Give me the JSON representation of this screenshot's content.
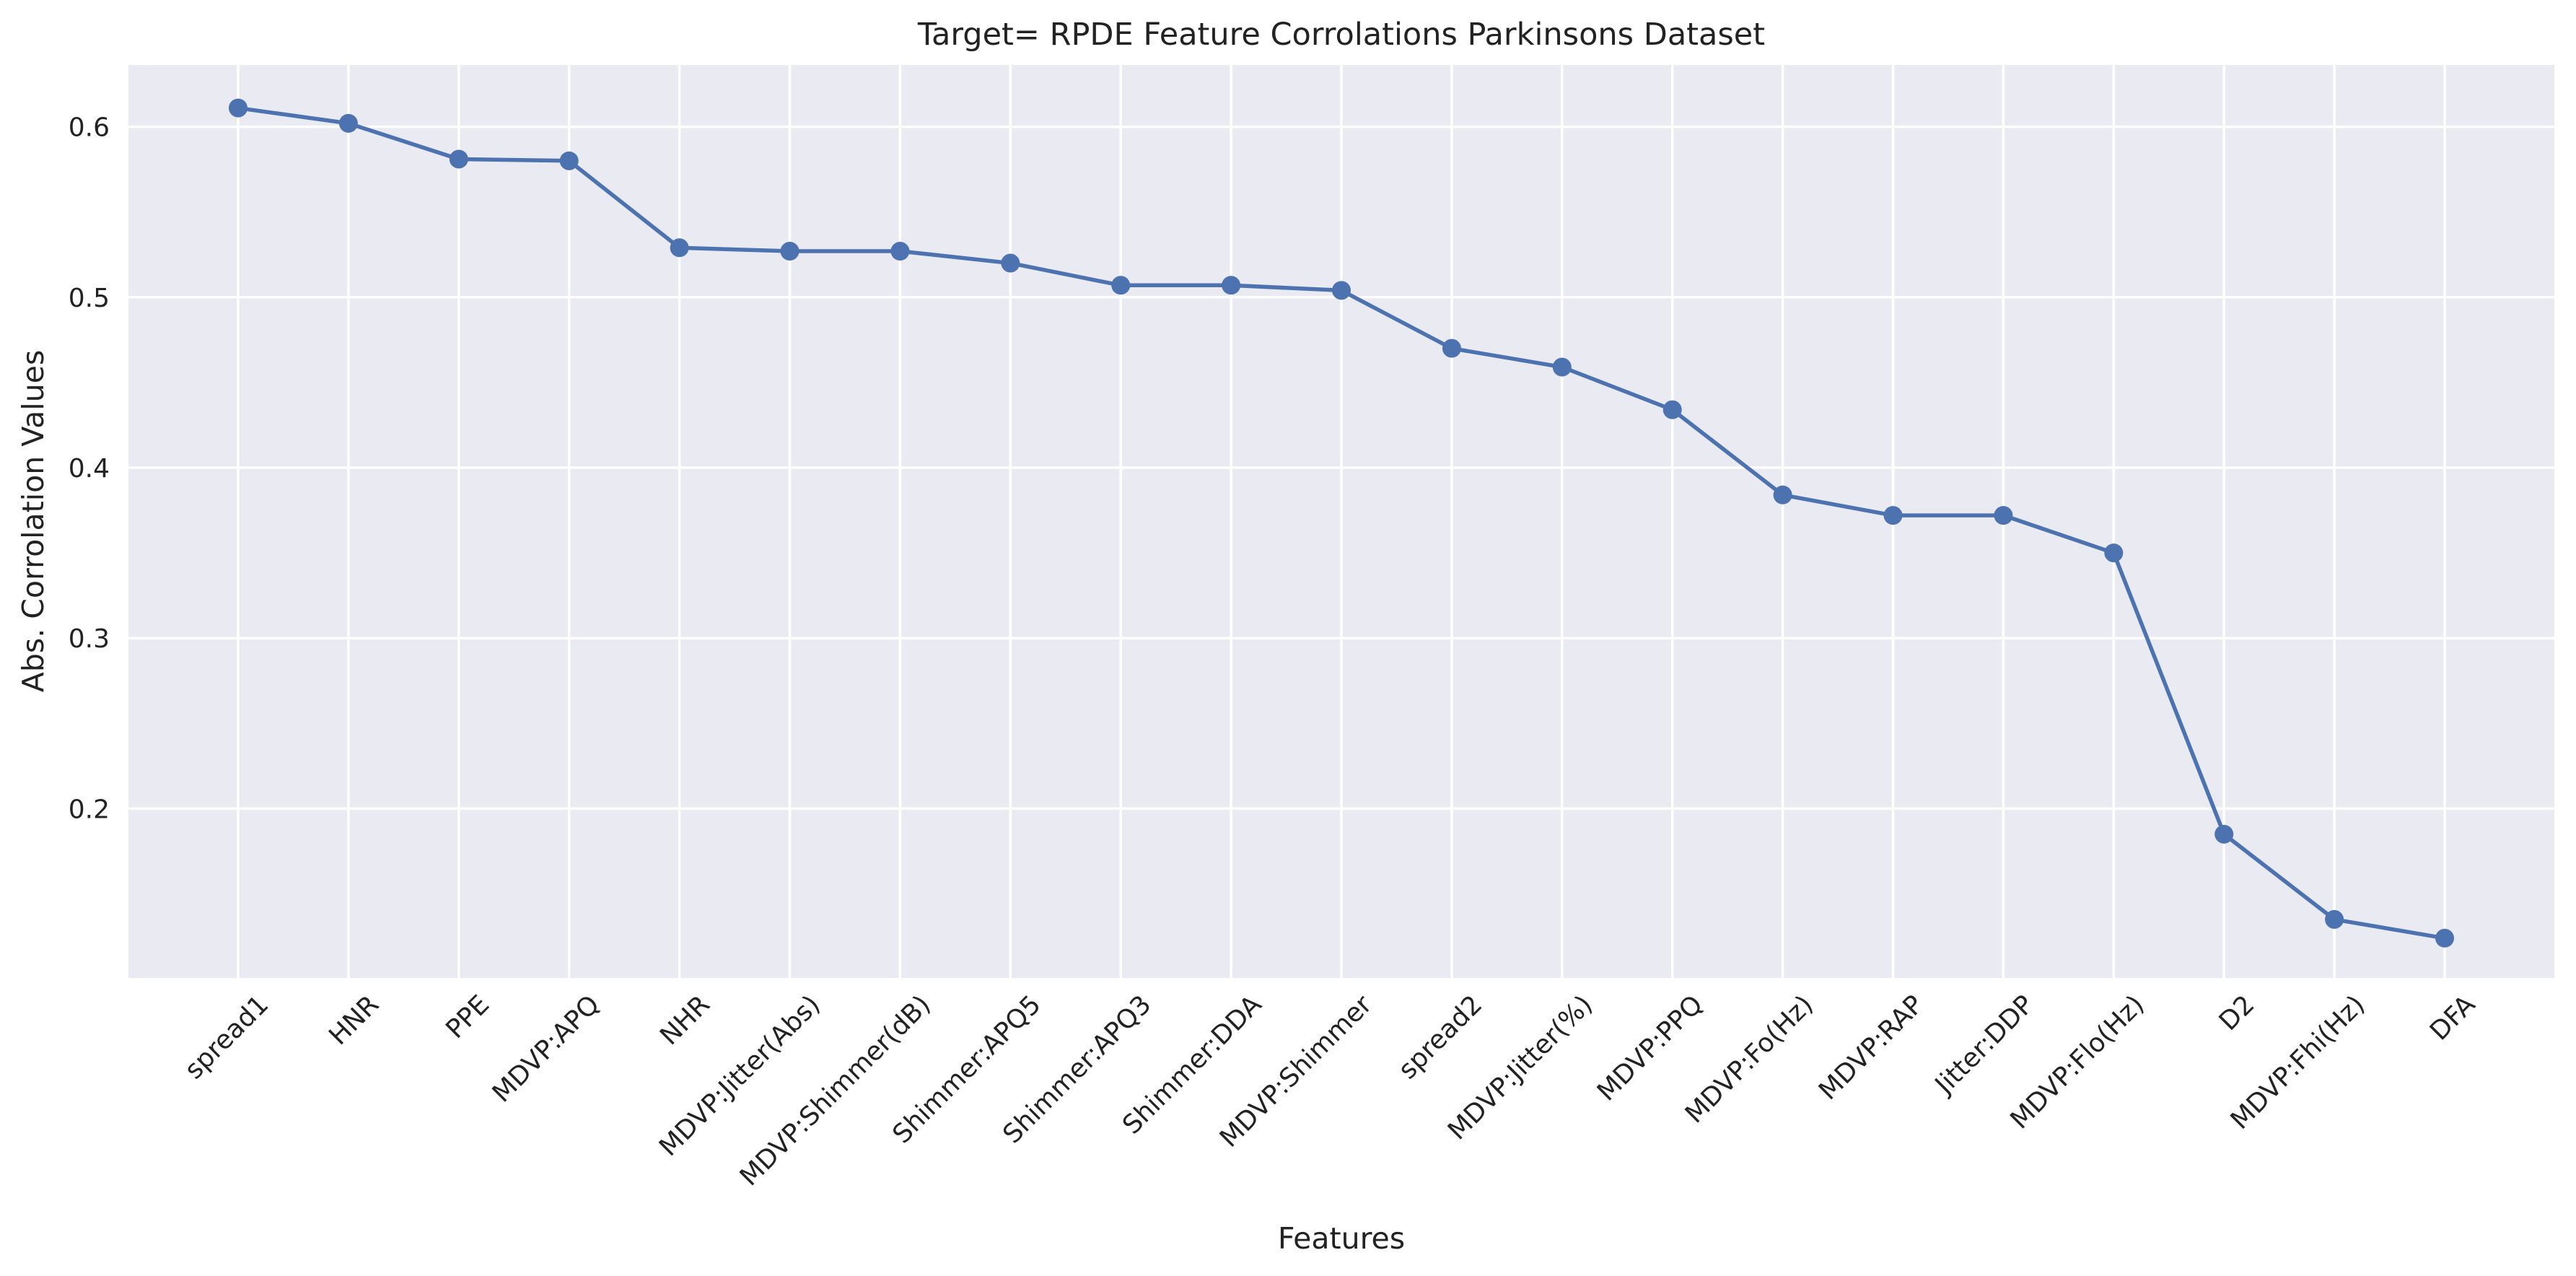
{
  "chart_data": {
    "type": "line",
    "title": "Target= RPDE Feature Corrolations Parkinsons Dataset",
    "xlabel": "Features",
    "ylabel": "Abs. Corrolation Values",
    "categories": [
      "spread1",
      "HNR",
      "PPE",
      "MDVP:APQ",
      "NHR",
      "MDVP:Jitter(Abs)",
      "MDVP:Shimmer(dB)",
      "Shimmer:APQ5",
      "Shimmer:APQ3",
      "Shimmer:DDA",
      "MDVP:Shimmer",
      "spread2",
      "MDVP:Jitter(%)",
      "MDVP:PPQ",
      "MDVP:Fo(Hz)",
      "MDVP:RAP",
      "Jitter:DDP",
      "MDVP:Flo(Hz)",
      "D2",
      "MDVP:Fhi(Hz)",
      "DFA"
    ],
    "values": [
      0.611,
      0.602,
      0.581,
      0.58,
      0.529,
      0.527,
      0.527,
      0.52,
      0.507,
      0.507,
      0.504,
      0.47,
      0.459,
      0.434,
      0.384,
      0.372,
      0.372,
      0.35,
      0.185,
      0.135,
      0.124
    ],
    "yticks": [
      "0.2",
      "0.3",
      "0.4",
      "0.5",
      "0.6"
    ],
    "ylim": [
      0.1,
      0.635
    ],
    "grid": true,
    "line_color": "#4c72b0",
    "background_color": "#eaeaf2"
  }
}
